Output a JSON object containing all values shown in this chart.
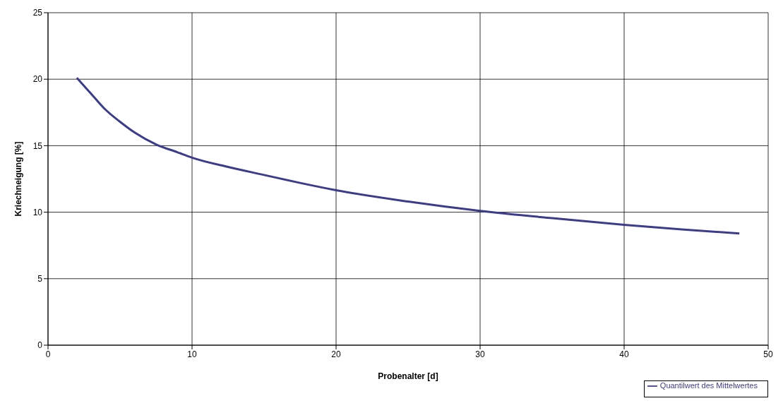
{
  "chart_data": {
    "type": "line",
    "xlabel": "Probenalter [d]",
    "ylabel": "Kriechneigung [%]",
    "x": [
      2,
      3,
      4,
      5,
      6,
      7.5,
      9,
      10,
      12.5,
      15,
      17.5,
      20,
      25,
      30,
      35,
      40,
      44,
      48
    ],
    "series": [
      {
        "name": "Quantilwert des Mittelwertes",
        "color": "#3c3c8c",
        "values": [
          20.1,
          18.9,
          17.7,
          16.8,
          16.0,
          15.1,
          14.5,
          14.1,
          13.4,
          12.8,
          12.2,
          11.65,
          10.8,
          10.1,
          9.55,
          9.05,
          8.7,
          8.4
        ]
      }
    ],
    "xlim": [
      0,
      50
    ],
    "xticks": [
      0,
      10,
      20,
      30,
      40,
      50
    ],
    "ylim": [
      0,
      25
    ],
    "yticks": [
      0,
      5,
      10,
      15,
      20,
      25
    ],
    "grid": true,
    "legend": "bottom right",
    "marker": "none",
    "line_style": "solid"
  }
}
